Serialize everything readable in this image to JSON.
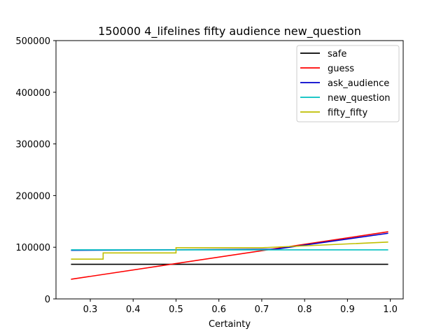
{
  "chart_data": {
    "type": "line",
    "title": "150000 4_lifelines fifty audience new_question",
    "xlabel": "Certainty",
    "ylabel": "",
    "xlim": [
      0.22,
      1.03
    ],
    "ylim": [
      0,
      500000
    ],
    "xticks": [
      0.3,
      0.4,
      0.5,
      0.6,
      0.7,
      0.8,
      0.9,
      1.0
    ],
    "xtick_labels": [
      "0.3",
      "0.4",
      "0.5",
      "0.6",
      "0.7",
      "0.8",
      "0.9",
      "1.0"
    ],
    "yticks": [
      0,
      100000,
      200000,
      300000,
      400000,
      500000
    ],
    "ytick_labels": [
      "0",
      "100000",
      "200000",
      "300000",
      "400000",
      "500000"
    ],
    "grid": false,
    "legend_position": "top-right",
    "series": [
      {
        "name": "safe",
        "color": "#000000",
        "x": [
          0.255,
          0.995
        ],
        "y": [
          67000,
          67000
        ]
      },
      {
        "name": "guess",
        "color": "#ff0000",
        "x": [
          0.255,
          0.995
        ],
        "y": [
          38000,
          130000
        ]
      },
      {
        "name": "ask_audience",
        "color": "#0000cc",
        "x": [
          0.255,
          0.73,
          0.995
        ],
        "y": [
          94000,
          96000,
          127000
        ]
      },
      {
        "name": "new_question",
        "color": "#00bfbf",
        "x": [
          0.255,
          0.995
        ],
        "y": [
          95000,
          95000
        ]
      },
      {
        "name": "fifty_fifty",
        "color": "#bfbf00",
        "x": [
          0.255,
          0.33,
          0.33,
          0.5,
          0.5,
          0.7,
          0.995
        ],
        "y": [
          77000,
          77000,
          89000,
          89000,
          99000,
          99000,
          110000
        ]
      }
    ]
  }
}
